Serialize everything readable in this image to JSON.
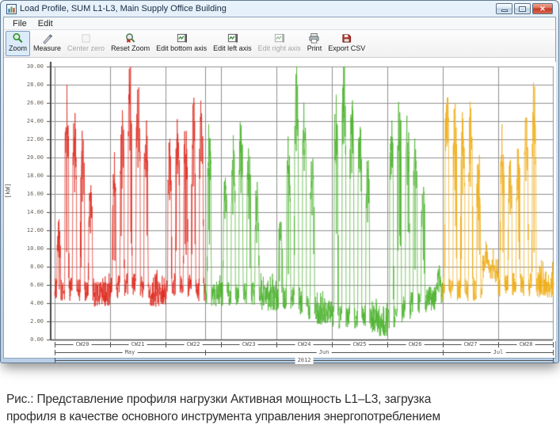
{
  "window": {
    "title": "Load Profile, SUM L1-L3, Main Supply Office Building",
    "controls": {
      "minimize": "minimize",
      "maximize": "maximize",
      "close": "close"
    }
  },
  "menu": {
    "items": [
      "File",
      "Edit"
    ]
  },
  "toolbar": {
    "buttons": [
      {
        "label": "Zoom",
        "icon": "zoom-icon",
        "selected": true,
        "disabled": false
      },
      {
        "label": "Measure",
        "icon": "measure-icon",
        "selected": false,
        "disabled": false
      },
      {
        "label": "Center zero",
        "icon": "center-zero-icon",
        "selected": false,
        "disabled": true
      },
      {
        "label": "Reset Zoom",
        "icon": "reset-zoom-icon",
        "selected": false,
        "disabled": false
      },
      {
        "label": "Edit bottom axis",
        "icon": "edit-bottom-axis-icon",
        "selected": false,
        "disabled": false
      },
      {
        "label": "Edit left axis",
        "icon": "edit-left-axis-icon",
        "selected": false,
        "disabled": false
      },
      {
        "label": "Edit right axis",
        "icon": "edit-right-axis-icon",
        "selected": false,
        "disabled": true
      },
      {
        "label": "Print",
        "icon": "print-icon",
        "selected": false,
        "disabled": false
      },
      {
        "label": "Export CSV",
        "icon": "export-csv-icon",
        "selected": false,
        "disabled": false
      }
    ]
  },
  "chart_data": {
    "type": "line",
    "title": "",
    "ylabel": "[kW]",
    "ylim": [
      0,
      30
    ],
    "y_tick_step": 2,
    "y_tick_labels": [
      "30.00",
      "28.00",
      "26.00",
      "24.00",
      "22.00",
      "20.00",
      "18.00",
      "16.00",
      "14.00",
      "12.00",
      "10.00",
      "8.00",
      "6.00",
      "4.00",
      "2.00",
      "0.00"
    ],
    "grid": true,
    "x_weeks": [
      "CW20",
      "CW21",
      "CW22",
      "CW23",
      "CW24",
      "CW25",
      "CW26",
      "CW27",
      "CW28"
    ],
    "x_months": [
      {
        "label": "May",
        "days": 19,
        "color": "#e02a1f"
      },
      {
        "label": "Jun",
        "days": 30,
        "color": "#4cb32e"
      },
      {
        "label": "Jul",
        "days": 14,
        "color": "#f0ac12"
      }
    ],
    "year": "2012",
    "days_per_week": 7,
    "day_peaks_kw": [
      13,
      27,
      25,
      23,
      17,
      6.5,
      6.5,
      20,
      26,
      30,
      28,
      24,
      7,
      6.5,
      22,
      25,
      24,
      26,
      26,
      24,
      7,
      18,
      22,
      24,
      21,
      17,
      6,
      5.5,
      14,
      22,
      30,
      26,
      21,
      5.5,
      4,
      27,
      30,
      27,
      24,
      20,
      4,
      3,
      24,
      27,
      25,
      22,
      18,
      5,
      8,
      28,
      26,
      25,
      26,
      21,
      11,
      10,
      24,
      20,
      22,
      25,
      28,
      8,
      7
    ],
    "day_bases_kw": [
      5.5,
      5.5,
      5.5,
      5.5,
      5.5,
      5,
      5,
      5.5,
      6,
      6,
      6,
      5.5,
      5,
      5,
      5.5,
      6,
      6,
      6,
      5.5,
      5,
      5,
      5,
      5,
      5,
      5,
      5,
      4.5,
      4.5,
      4.5,
      4.5,
      4.5,
      4,
      3.5,
      3,
      3,
      2.5,
      2.5,
      2.5,
      2.5,
      2.5,
      2,
      1.5,
      2.5,
      3,
      3.5,
      4,
      4,
      4.5,
      5,
      5.5,
      5.5,
      5.5,
      5.5,
      5.5,
      8,
      7.5,
      6,
      6,
      6,
      6,
      6,
      6,
      6
    ],
    "axis_color": "#4a4a4a",
    "grid_color": "#909090"
  },
  "caption": {
    "line1": "Рис.: Представление профиля нагрузки Активная мощность L1–L3, загрузка",
    "line2": "профиля в качестве основного инструмента управления энергопотреблением"
  }
}
